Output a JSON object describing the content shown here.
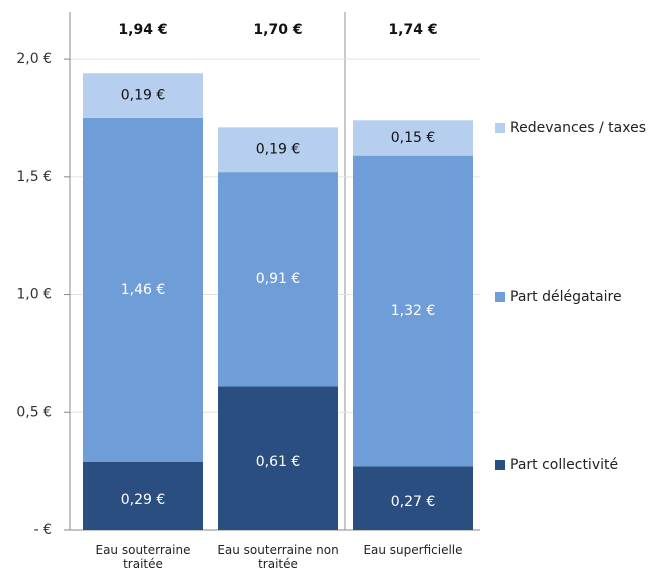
{
  "chart_data": {
    "type": "stacked_bar",
    "categories": [
      "Eau souterraine traitée",
      "Eau souterraine non traitée",
      "Eau superficielle"
    ],
    "series": [
      {
        "name": "Part collectivité",
        "color": "#2b4e80",
        "values": [
          0.29,
          0.61,
          0.27
        ],
        "value_labels": [
          "0,29 €",
          "0,61 €",
          "0,27 €"
        ]
      },
      {
        "name": "Part délégataire",
        "color": "#6f9dd8",
        "values": [
          1.46,
          0.91,
          1.32
        ],
        "value_labels": [
          "1,46 €",
          "0,91 €",
          "1,32 €"
        ]
      },
      {
        "name": "Redevances / taxes",
        "color": "#b6cfee",
        "values": [
          0.19,
          0.19,
          0.15
        ],
        "value_labels": [
          "0,19 €",
          "0,19 €",
          "0,15 €"
        ]
      }
    ],
    "totals": [
      1.94,
      1.7,
      1.74
    ],
    "total_labels": [
      "1,94 €",
      "1,70 €",
      "1,74 €"
    ],
    "ylim": [
      0,
      2.2
    ],
    "yticks": [
      {
        "value": 0,
        "label": "- €"
      },
      {
        "value": 0.5,
        "label": "0,5 €"
      },
      {
        "value": 1,
        "label": "1,0 €"
      },
      {
        "value": 1.5,
        "label": "1,5 €"
      },
      {
        "value": 2,
        "label": "2,0 €"
      }
    ],
    "grid": true,
    "legend": "right"
  }
}
